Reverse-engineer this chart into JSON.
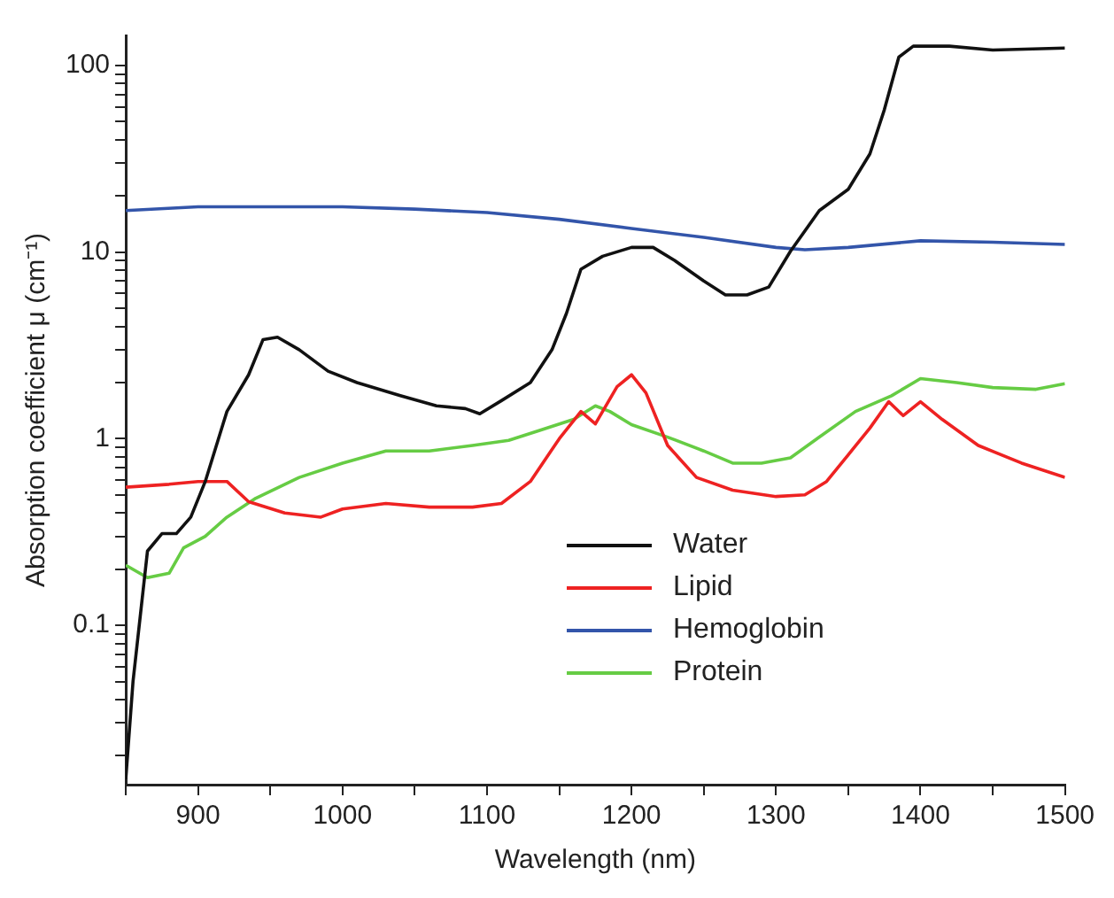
{
  "chart_data": {
    "type": "line",
    "xlabel": "Wavelength (nm)",
    "ylabel": "Absorption coefficient μ (cm⁻¹)",
    "log": "y",
    "grid": false,
    "legend": "bottom right",
    "marker": "none",
    "line_style": "solid",
    "xlim": [
      850,
      1500
    ],
    "xticks": [
      {
        "value": 850,
        "label": null
      },
      900,
      {
        "value": 950,
        "label": null
      },
      1000,
      {
        "value": 1050,
        "label": null
      },
      1100,
      {
        "value": 1150,
        "label": null
      },
      1200,
      {
        "value": 1250,
        "label": null
      },
      1300,
      {
        "value": 1350,
        "label": null
      },
      1400,
      {
        "value": 1450,
        "label": null
      },
      1500
    ],
    "ylim": [
      0.014,
      145
    ],
    "yticks": [
      {
        "value": 0.02,
        "label": null
      },
      {
        "value": 0.03,
        "label": null
      },
      {
        "value": 0.04,
        "label": null
      },
      {
        "value": 0.05,
        "label": null
      },
      {
        "value": 0.06,
        "label": null
      },
      {
        "value": 0.07,
        "label": null
      },
      {
        "value": 0.08,
        "label": null
      },
      {
        "value": 0.09,
        "label": null
      },
      0.1,
      {
        "value": 0.2,
        "label": null
      },
      {
        "value": 0.3,
        "label": null
      },
      {
        "value": 0.4,
        "label": null
      },
      {
        "value": 0.5,
        "label": null
      },
      {
        "value": 0.6,
        "label": null
      },
      {
        "value": 0.7,
        "label": null
      },
      {
        "value": 0.8,
        "label": null
      },
      {
        "value": 0.9,
        "label": null
      },
      1,
      {
        "value": 2,
        "label": null
      },
      {
        "value": 3,
        "label": null
      },
      {
        "value": 4,
        "label": null
      },
      {
        "value": 5,
        "label": null
      },
      {
        "value": 6,
        "label": null
      },
      {
        "value": 7,
        "label": null
      },
      {
        "value": 8,
        "label": null
      },
      {
        "value": 9,
        "label": null
      },
      10,
      {
        "value": 20,
        "label": null
      },
      {
        "value": 30,
        "label": null
      },
      {
        "value": 40,
        "label": null
      },
      {
        "value": 50,
        "label": null
      },
      {
        "value": 60,
        "label": null
      },
      {
        "value": 70,
        "label": null
      },
      {
        "value": 80,
        "label": null
      },
      {
        "value": 90,
        "label": null
      },
      100
    ],
    "series": [
      {
        "name": "Water",
        "color": "#111111",
        "x": [
          850,
          855,
          865,
          875,
          885,
          895,
          905,
          920,
          935,
          945,
          955,
          970,
          990,
          1010,
          1040,
          1065,
          1085,
          1095,
          1110,
          1130,
          1145,
          1155,
          1165,
          1180,
          1200,
          1215,
          1230,
          1250,
          1265,
          1280,
          1295,
          1310,
          1330,
          1350,
          1365,
          1375,
          1385,
          1395,
          1420,
          1450,
          1500
        ],
        "values": [
          0.015,
          0.05,
          0.25,
          0.31,
          0.31,
          0.38,
          0.59,
          1.4,
          2.2,
          3.4,
          3.5,
          3.0,
          2.3,
          2.0,
          1.7,
          1.5,
          1.45,
          1.36,
          1.6,
          2.0,
          3.0,
          4.7,
          8.1,
          9.5,
          10.6,
          10.6,
          9.0,
          7.0,
          5.9,
          5.9,
          6.5,
          10.1,
          16.7,
          21.7,
          33.6,
          58,
          111,
          127,
          127,
          121,
          124
        ]
      },
      {
        "name": "Lipid",
        "color": "#ee2222",
        "x": [
          850,
          880,
          900,
          920,
          935,
          960,
          985,
          1000,
          1030,
          1060,
          1090,
          1110,
          1130,
          1150,
          1165,
          1175,
          1190,
          1200,
          1210,
          1225,
          1245,
          1270,
          1300,
          1320,
          1335,
          1350,
          1365,
          1378,
          1388,
          1400,
          1415,
          1440,
          1470,
          1500
        ],
        "values": [
          0.55,
          0.57,
          0.59,
          0.59,
          0.46,
          0.4,
          0.38,
          0.42,
          0.45,
          0.43,
          0.43,
          0.45,
          0.59,
          1.0,
          1.4,
          1.2,
          1.9,
          2.2,
          1.76,
          0.92,
          0.62,
          0.53,
          0.49,
          0.5,
          0.59,
          0.82,
          1.14,
          1.58,
          1.33,
          1.58,
          1.27,
          0.92,
          0.74,
          0.62
        ]
      },
      {
        "name": "Hemoglobin",
        "color": "#3355aa",
        "x": [
          850,
          900,
          1000,
          1050,
          1100,
          1150,
          1200,
          1250,
          1300,
          1320,
          1350,
          1400,
          1450,
          1500
        ],
        "values": [
          16.7,
          17.5,
          17.5,
          17,
          16.3,
          15,
          13.4,
          12,
          10.6,
          10.3,
          10.6,
          11.5,
          11.3,
          11
        ]
      },
      {
        "name": "Protein",
        "color": "#66cc44",
        "x": [
          850,
          865,
          880,
          890,
          905,
          920,
          940,
          970,
          1000,
          1030,
          1060,
          1090,
          1115,
          1135,
          1160,
          1175,
          1185,
          1200,
          1225,
          1250,
          1270,
          1290,
          1310,
          1330,
          1355,
          1380,
          1400,
          1425,
          1450,
          1480,
          1500
        ],
        "values": [
          0.21,
          0.18,
          0.19,
          0.26,
          0.3,
          0.38,
          0.48,
          0.62,
          0.74,
          0.86,
          0.86,
          0.92,
          0.98,
          1.1,
          1.27,
          1.5,
          1.4,
          1.19,
          1.02,
          0.86,
          0.74,
          0.74,
          0.79,
          1.02,
          1.4,
          1.7,
          2.1,
          2.0,
          1.88,
          1.84,
          1.97
        ]
      }
    ]
  }
}
